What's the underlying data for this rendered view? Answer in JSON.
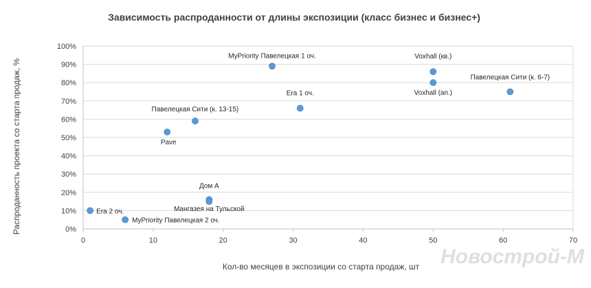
{
  "chart_data": {
    "type": "scatter",
    "title": "Зависимость  распроданности от длины экспозиции (класс бизнес и бизнес+)",
    "xlabel": "Кол-во месяцев в экспозиции со старта продаж, шт",
    "ylabel": "Распроданность проекта со старта продаж, %",
    "xlim": [
      0,
      70
    ],
    "ylim": [
      0,
      100
    ],
    "x_ticks": [
      "0",
      "10",
      "20",
      "30",
      "40",
      "50",
      "60",
      "70"
    ],
    "y_ticks": [
      "0%",
      "10%",
      "20%",
      "30%",
      "40%",
      "50%",
      "60%",
      "70%",
      "80%",
      "90%",
      "100%"
    ],
    "grid": "horizontal",
    "legend": "none",
    "marker_color": "#5b9bd5",
    "points": [
      {
        "label": "MyPriority Павелецкая  1 оч.",
        "x": 27,
        "y": 89
      },
      {
        "label": "Voxhall (кв.)",
        "x": 50,
        "y": 86
      },
      {
        "label": "Voxhall (ап.)",
        "x": 50,
        "y": 80
      },
      {
        "label": "Павелецкая  Сити (к. 6-7)",
        "x": 61,
        "y": 75
      },
      {
        "label": "Era 1 оч.",
        "x": 31,
        "y": 66
      },
      {
        "label": "Павелецкая  Сити (к. 13-15)",
        "x": 16,
        "y": 59
      },
      {
        "label": "Pave",
        "x": 12,
        "y": 53
      },
      {
        "label": "Дом А",
        "x": 18,
        "y": 16
      },
      {
        "label": "Мангазея  на Тульской",
        "x": 18,
        "y": 15
      },
      {
        "label": "Era 2 оч.",
        "x": 1,
        "y": 10
      },
      {
        "label": "MyPriority Павелецкая  2 оч.",
        "x": 6,
        "y": 5
      }
    ]
  },
  "watermark": "Новострой-М"
}
